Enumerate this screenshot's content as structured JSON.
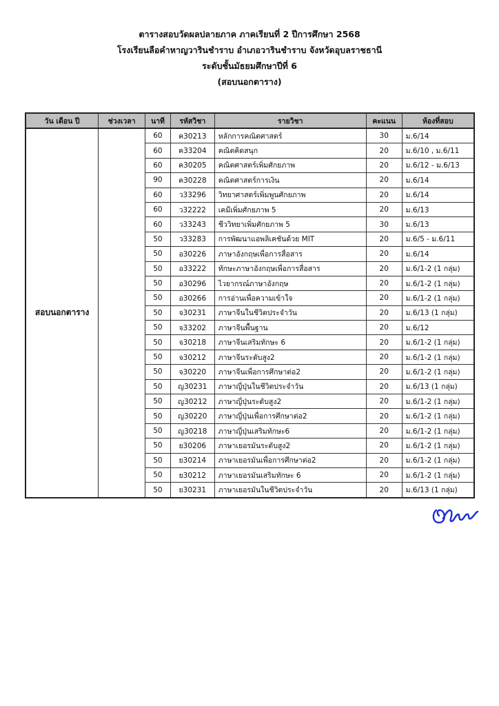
{
  "header": {
    "line1": "ตารางสอบวัดผลปลายภาค ภาคเรียนที่ 2  ปีการศึกษา 2568",
    "line2": "โรงเรียนลือคำหาญวารินชำราบ อำเภอวารินชำราบ จังหวัดอุบลราชธานี",
    "line3": "ระดับชั้นมัธยมศึกษาปีที่ 6",
    "line4": "(สอบนอกตาราง)"
  },
  "table": {
    "columns": [
      "วัน เดือน ปี",
      "ช่วงเวลา",
      "นาที",
      "รหัสวิชา",
      "รายวิชา",
      "คะแนน",
      "ห้องที่สอบ"
    ],
    "date_cell": "สอบนอกตาราง",
    "time_cell": "",
    "rows": [
      {
        "minutes": "60",
        "code": "ค30213",
        "subject": "หลักการคณิตศาสตร์",
        "score": "30",
        "room": "ม.6/14"
      },
      {
        "minutes": "60",
        "code": "ค33204",
        "subject": "คณิตคิดสนุก",
        "score": "20",
        "room": "ม.6/10 , ม.6/11"
      },
      {
        "minutes": "60",
        "code": "ค30205",
        "subject": "คณิตศาสตร์เพิ่มศักยภาพ",
        "score": "20",
        "room": "ม.6/12 - ม.6/13"
      },
      {
        "minutes": "90",
        "code": "ค30228",
        "subject": "คณิตศาสตร์การเงิน",
        "score": "20",
        "room": "ม.6/14"
      },
      {
        "minutes": "60",
        "code": "ว33296",
        "subject": "วิทยาศาสตร์เพิ่มพูนศักยภาพ",
        "score": "20",
        "room": "ม.6/14"
      },
      {
        "minutes": "60",
        "code": "ว32222",
        "subject": "เคมีเพิ่มศักยภาพ 5",
        "score": "20",
        "room": "ม.6/13"
      },
      {
        "minutes": "60",
        "code": "ว33243",
        "subject": "ชีววิทยาเพิ่มศักยภาพ 5",
        "score": "30",
        "room": "ม.6/13"
      },
      {
        "minutes": "50",
        "code": "ว33283",
        "subject": "การพัฒนาแอพลิเคชันด้วย MIT",
        "score": "20",
        "room": "ม.6/5 - ม.6/11"
      },
      {
        "minutes": "50",
        "code": "อ30226",
        "subject": "ภาษาอังกฤษเพื่อการสื่อสาร",
        "score": "20",
        "room": "ม.6/14"
      },
      {
        "minutes": "50",
        "code": "อ33222",
        "subject": "ทักษะภาษาอังกฤษเพื่อการสื่อสาร",
        "score": "20",
        "room": "ม.6/1-2 (1 กลุ่ม)"
      },
      {
        "minutes": "50",
        "code": "อ30296",
        "subject": "ไวยากรณ์ภาษาอังกฤษ",
        "score": "20",
        "room": "ม.6/1-2 (1 กลุ่ม)"
      },
      {
        "minutes": "50",
        "code": "อ30266",
        "subject": "การอ่านเพื่อความเข้าใจ",
        "score": "20",
        "room": "ม.6/1-2 (1 กลุ่ม)"
      },
      {
        "minutes": "50",
        "code": "จ30231",
        "subject": "ภาษาจีนในชีวิตประจำวัน",
        "score": "20",
        "room": "ม.6/13 (1 กลุ่ม)"
      },
      {
        "minutes": "50",
        "code": "จ33202",
        "subject": "ภาษาจีนพื้นฐาน",
        "score": "20",
        "room": "ม.6/12"
      },
      {
        "minutes": "50",
        "code": "จ30218",
        "subject": "ภาษาจีนเสริมทักษะ 6",
        "score": "20",
        "room": "ม.6/1-2 (1 กลุ่ม)"
      },
      {
        "minutes": "50",
        "code": "จ30212",
        "subject": "ภาษาจีนระดับสูง2",
        "score": "20",
        "room": "ม.6/1-2 (1 กลุ่ม)"
      },
      {
        "minutes": "50",
        "code": "จ30220",
        "subject": "ภาษาจีนเพื่อการศึกษาต่อ2",
        "score": "20",
        "room": "ม.6/1-2 (1 กลุ่ม)"
      },
      {
        "minutes": "50",
        "code": "ญ30231",
        "subject": "ภาษาญี่ปุ่นในชีวิตประจำวัน",
        "score": "20",
        "room": "ม.6/13 (1 กลุ่ม)"
      },
      {
        "minutes": "50",
        "code": "ญ30212",
        "subject": "ภาษาญี่ปุ่นระดับสูง2",
        "score": "20",
        "room": "ม.6/1-2 (1 กลุ่ม)"
      },
      {
        "minutes": "50",
        "code": "ญ30220",
        "subject": "ภาษาญี่ปุ่นเพื่อการศึกษาต่อ2",
        "score": "20",
        "room": "ม.6/1-2 (1 กลุ่ม)"
      },
      {
        "minutes": "50",
        "code": "ญ30218",
        "subject": "ภาษาญี่ปุ่นเสริมทักษะ6",
        "score": "20",
        "room": "ม.6/1-2 (1 กลุ่ม)"
      },
      {
        "minutes": "50",
        "code": "ย30206",
        "subject": "ภาษาเยอรมันระดับสูง2",
        "score": "20",
        "room": "ม.6/1-2 (1 กลุ่ม)"
      },
      {
        "minutes": "50",
        "code": "ย30214",
        "subject": "ภาษาเยอรมันเพื่อการศึกษาต่อ2",
        "score": "20",
        "room": "ม.6/1-2 (1 กลุ่ม)"
      },
      {
        "minutes": "50",
        "code": "ย30212",
        "subject": "ภาษาเยอรมันเสริมทักษะ 6",
        "score": "20",
        "room": "ม.6/1-2 (1 กลุ่ม)"
      },
      {
        "minutes": "50",
        "code": "ย30231",
        "subject": "ภาษาเยอรมันในชีวิตประจำวัน",
        "score": "20",
        "room": "ม.6/13 (1 กลุ่ม)"
      }
    ]
  },
  "colors": {
    "header_bg": "#c0c0c0",
    "signature": "#1a2fd0"
  }
}
